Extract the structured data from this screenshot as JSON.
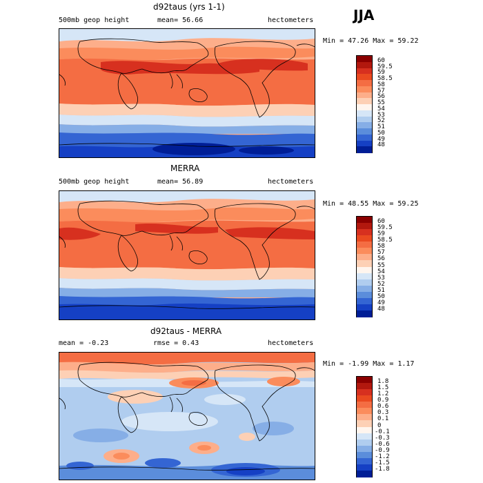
{
  "season": "JJA",
  "panels": [
    {
      "id": "model",
      "title": "d92taus (yrs 1-1)",
      "left_text": "500mb geop height",
      "mean_text": "mean=  56.66",
      "units": "hectometers",
      "minmax": "Min =  47.26 Max =  59.22",
      "cbar_labels": [
        "60",
        "59.5",
        "59",
        "58.5",
        "58",
        "57",
        "56",
        "55",
        "54",
        "53",
        "52",
        "51",
        "50",
        "49",
        "48"
      ],
      "cbar_colors": [
        "#8b0000",
        "#b2180e",
        "#d7301f",
        "#ea4a20",
        "#f46d43",
        "#fb8c5c",
        "#fdae8a",
        "#fdd0b5",
        "#fff5ee",
        "#d6e6f7",
        "#b0cdef",
        "#86aee6",
        "#5b8ddb",
        "#3465d3",
        "#1540c4",
        "#001e96"
      ],
      "colors": {
        "band_north": "#fdae8a",
        "band_tropics": "#f46d43",
        "band_peak": "#d7301f",
        "band_southmid": "#86aee6",
        "band_south": "#1540c4",
        "band_pole": "#001e96"
      }
    },
    {
      "id": "obs",
      "title": "MERRA",
      "left_text": "500mb geop height",
      "mean_text": "mean=  56.89",
      "units": "hectometers",
      "minmax": "Min =  48.55 Max =  59.25",
      "cbar_labels": [
        "60",
        "59.5",
        "59",
        "58.5",
        "58",
        "57",
        "56",
        "55",
        "54",
        "53",
        "52",
        "51",
        "50",
        "49",
        "48"
      ],
      "cbar_colors": [
        "#8b0000",
        "#b2180e",
        "#d7301f",
        "#ea4a20",
        "#f46d43",
        "#fb8c5c",
        "#fdae8a",
        "#fdd0b5",
        "#fff5ee",
        "#d6e6f7",
        "#b0cdef",
        "#86aee6",
        "#5b8ddb",
        "#3465d3",
        "#1540c4",
        "#001e96"
      ],
      "colors": {
        "band_north": "#fdae8a",
        "band_tropics": "#f46d43",
        "band_peak": "#d7301f",
        "band_southmid": "#86aee6",
        "band_south": "#1540c4",
        "band_pole": "#001e96"
      }
    },
    {
      "id": "diff",
      "title": "d92taus - MERRA",
      "mean_text": "mean =  -0.23",
      "rmse_text": "rmse =   0.43",
      "units": "hectometers",
      "minmax": "Min =  -1.99 Max =   1.17",
      "cbar_labels": [
        "1.8",
        "1.5",
        "1.2",
        "0.9",
        "0.6",
        "0.3",
        "0.1",
        "0",
        "-0.1",
        "-0.3",
        "-0.6",
        "-0.9",
        "-1.2",
        "-1.5",
        "-1.8"
      ],
      "cbar_colors": [
        "#8b0000",
        "#b2180e",
        "#d7301f",
        "#ea4a20",
        "#f46d43",
        "#fb8c5c",
        "#fdae8a",
        "#fdd0b5",
        "#fff5ee",
        "#d6e6f7",
        "#b0cdef",
        "#86aee6",
        "#5b8ddb",
        "#3465d3",
        "#1540c4",
        "#001e96"
      ]
    }
  ],
  "chart_data": [
    {
      "type": "heatmap",
      "title": "d92taus (yrs 1-1)",
      "variable": "500mb geop height",
      "units": "hectometers",
      "season": "JJA",
      "mean": 56.66,
      "min": 47.26,
      "max": 59.22,
      "contour_levels": [
        48,
        49,
        50,
        51,
        52,
        53,
        54,
        55,
        56,
        57,
        58,
        58.5,
        59,
        59.5,
        60
      ]
    },
    {
      "type": "heatmap",
      "title": "MERRA",
      "variable": "500mb geop height",
      "units": "hectometers",
      "season": "JJA",
      "mean": 56.89,
      "min": 48.55,
      "max": 59.25,
      "contour_levels": [
        48,
        49,
        50,
        51,
        52,
        53,
        54,
        55,
        56,
        57,
        58,
        58.5,
        59,
        59.5,
        60
      ]
    },
    {
      "type": "heatmap",
      "title": "d92taus - MERRA",
      "units": "hectometers",
      "season": "JJA",
      "mean": -0.23,
      "rmse": 0.43,
      "min": -1.99,
      "max": 1.17,
      "contour_levels": [
        -1.8,
        -1.5,
        -1.2,
        -0.9,
        -0.6,
        -0.3,
        -0.1,
        0,
        0.1,
        0.3,
        0.6,
        0.9,
        1.2,
        1.5,
        1.8
      ]
    }
  ]
}
